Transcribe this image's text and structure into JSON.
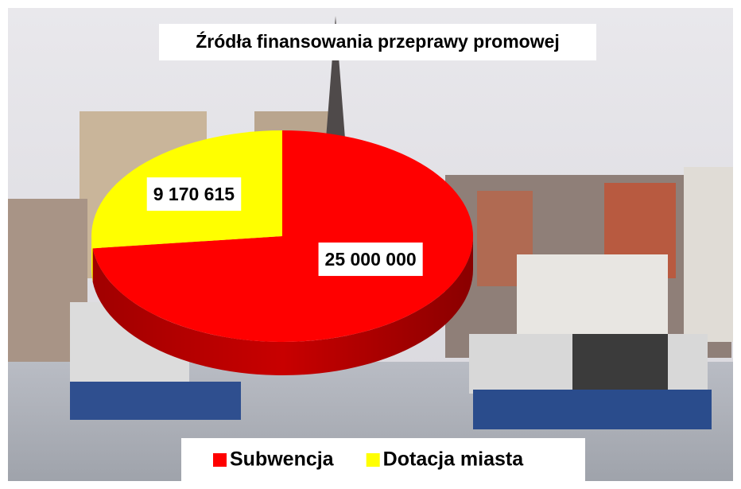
{
  "chart_data": {
    "type": "pie",
    "title": "Źródła finansowania przeprawy promowej",
    "categories": [
      "Subwencja",
      "Dotacja miasta"
    ],
    "values": [
      25000000,
      9170615
    ],
    "value_labels": [
      "25 000 000",
      "9 170 615"
    ],
    "colors": [
      "#ff0000",
      "#ffff00"
    ]
  }
}
